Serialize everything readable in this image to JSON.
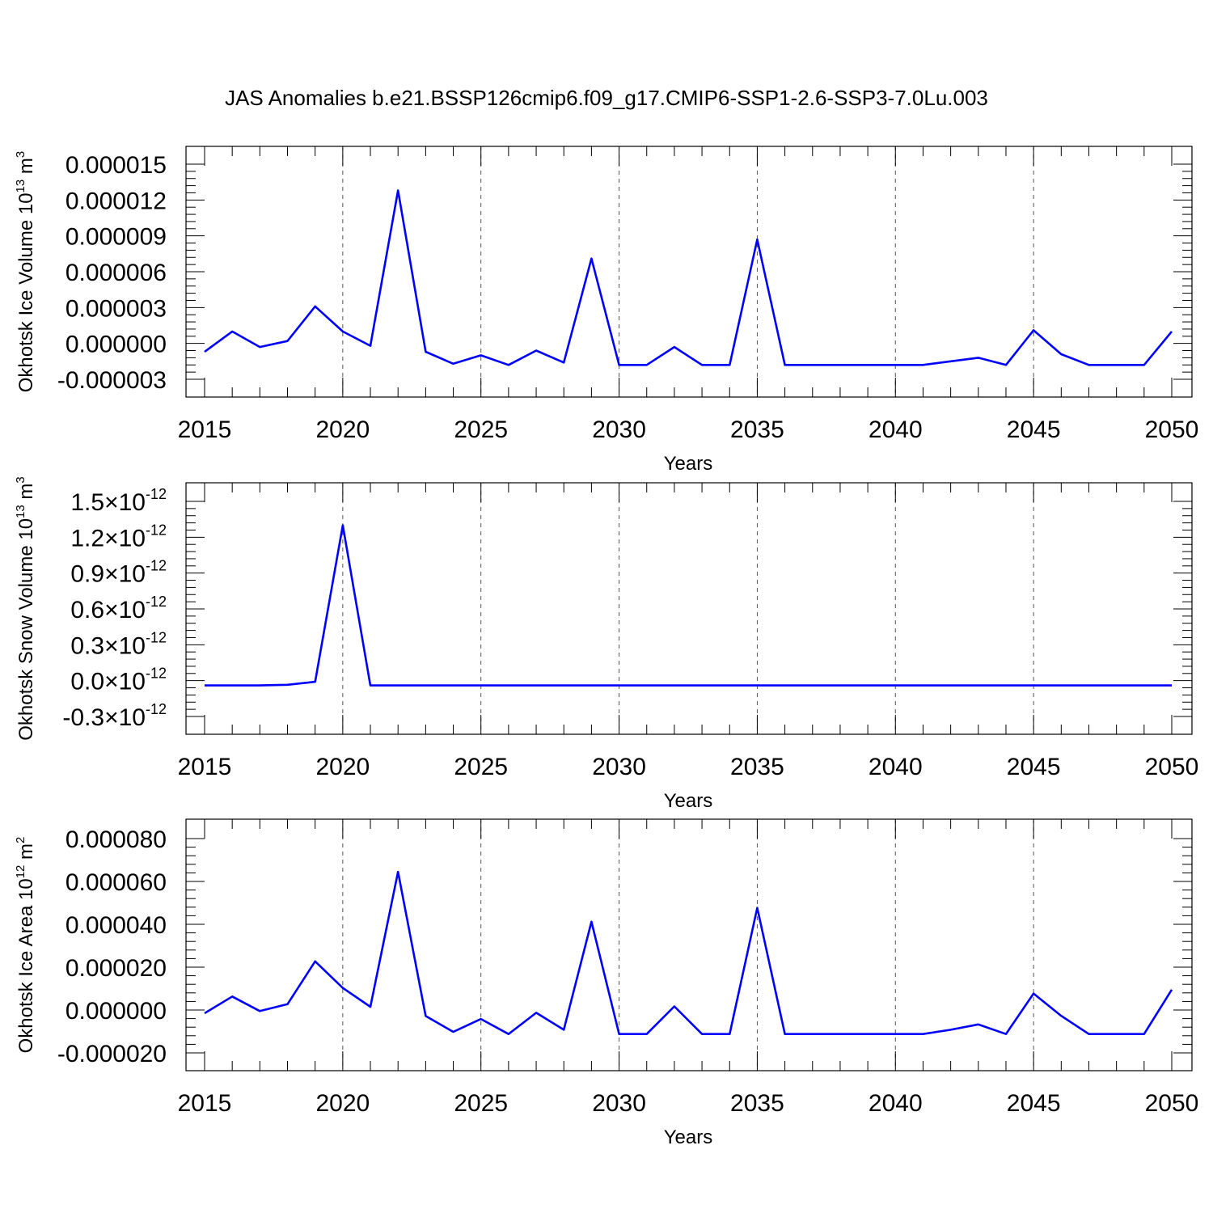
{
  "title": "JAS Anomalies b.e21.BSSP126cmip6.f09_g17.CMIP6-SSP1-2.6-SSP3-7.0Lu.003",
  "colors": {
    "line": "#0000ff",
    "axis": "#000000",
    "grid": "#555555"
  },
  "chart_data": [
    {
      "type": "line",
      "ylabel": {
        "main": "Okhotsk Ice Volume 10",
        "exp": "13",
        "unit": " m",
        "unit_exp": "3"
      },
      "xlabel": "Years",
      "xlim": [
        2015,
        2050
      ],
      "ylim": [
        -3e-06,
        1.5e-05
      ],
      "x_ticks": [
        2015,
        2020,
        2025,
        2030,
        2035,
        2040,
        2045,
        2050
      ],
      "x_tick_labels": [
        "2015",
        "2020",
        "2025",
        "2030",
        "2035",
        "2040",
        "2045",
        "2050"
      ],
      "y_ticks": [
        -3e-06,
        0,
        3e-06,
        6e-06,
        9e-06,
        1.2e-05,
        1.5e-05
      ],
      "y_tick_labels": [
        "-0.000003",
        "0.000000",
        "0.000003",
        "0.000006",
        "0.000009",
        "0.000012",
        "0.000015"
      ],
      "grid": "vertical dashed at major x ticks",
      "x": [
        2015,
        2016,
        2017,
        2018,
        2019,
        2020,
        2021,
        2022,
        2023,
        2024,
        2025,
        2026,
        2027,
        2028,
        2029,
        2030,
        2031,
        2032,
        2033,
        2034,
        2035,
        2036,
        2037,
        2038,
        2039,
        2040,
        2041,
        2042,
        2043,
        2044,
        2045,
        2046,
        2047,
        2048,
        2049,
        2050
      ],
      "values": [
        -7e-07,
        1e-06,
        -3e-07,
        2e-07,
        3.1e-06,
        1e-06,
        -2e-07,
        1.28e-05,
        -7e-07,
        -1.7e-06,
        -1e-06,
        -1.8e-06,
        -6e-07,
        -1.6e-06,
        7.1e-06,
        -1.8e-06,
        -1.8e-06,
        -3e-07,
        -1.8e-06,
        -1.8e-06,
        8.7e-06,
        -1.8e-06,
        -1.8e-06,
        -1.8e-06,
        -1.8e-06,
        -1.8e-06,
        -1.8e-06,
        -1.5e-06,
        -1.2e-06,
        -1.8e-06,
        1.1e-06,
        -9e-07,
        -1.8e-06,
        -1.8e-06,
        -1.8e-06,
        1e-06
      ]
    },
    {
      "type": "line",
      "ylabel": {
        "main": "Okhotsk Snow Volume 10",
        "exp": "13",
        "unit": " m",
        "unit_exp": "3"
      },
      "xlabel": "Years",
      "xlim": [
        2015,
        2050
      ],
      "ylim": [
        -3e-13,
        1.5e-12
      ],
      "x_ticks": [
        2015,
        2020,
        2025,
        2030,
        2035,
        2040,
        2045,
        2050
      ],
      "x_tick_labels": [
        "2015",
        "2020",
        "2025",
        "2030",
        "2035",
        "2040",
        "2045",
        "2050"
      ],
      "y_ticks": [
        -3e-13,
        0,
        3e-13,
        6e-13,
        9e-13,
        1.2e-12,
        1.5e-12
      ],
      "y_tick_labels": [
        {
          "mantissa": "-0.3",
          "times": "×10",
          "exp": "-12"
        },
        {
          "mantissa": "0.0",
          "times": "×10",
          "exp": "-12"
        },
        {
          "mantissa": "0.3",
          "times": "×10",
          "exp": "-12"
        },
        {
          "mantissa": "0.6",
          "times": "×10",
          "exp": "-12"
        },
        {
          "mantissa": "0.9",
          "times": "×10",
          "exp": "-12"
        },
        {
          "mantissa": "1.2",
          "times": "×10",
          "exp": "-12"
        },
        {
          "mantissa": "1.5",
          "times": "×10",
          "exp": "-12"
        }
      ],
      "grid": "vertical dashed at major x ticks",
      "x": [
        2015,
        2016,
        2017,
        2018,
        2019,
        2020,
        2021,
        2022,
        2023,
        2024,
        2025,
        2026,
        2027,
        2028,
        2029,
        2030,
        2031,
        2032,
        2033,
        2034,
        2035,
        2036,
        2037,
        2038,
        2039,
        2040,
        2041,
        2042,
        2043,
        2044,
        2045,
        2046,
        2047,
        2048,
        2049,
        2050
      ],
      "values": [
        -4e-14,
        -4e-14,
        -4e-14,
        -3.5e-14,
        -1e-14,
        1.3e-12,
        -4e-14,
        -4e-14,
        -4e-14,
        -4e-14,
        -4e-14,
        -4e-14,
        -4e-14,
        -4e-14,
        -4e-14,
        -4e-14,
        -4e-14,
        -4e-14,
        -4e-14,
        -4e-14,
        -4e-14,
        -4e-14,
        -4e-14,
        -4e-14,
        -4e-14,
        -4e-14,
        -4e-14,
        -4e-14,
        -4e-14,
        -4e-14,
        -4e-14,
        -4e-14,
        -4e-14,
        -4e-14,
        -4e-14,
        -4e-14
      ]
    },
    {
      "type": "line",
      "ylabel": {
        "main": "Okhotsk Ice Area 10",
        "exp": "12",
        "unit": " m",
        "unit_exp": "2"
      },
      "xlabel": "Years",
      "xlim": [
        2015,
        2050
      ],
      "ylim": [
        -2e-05,
        8e-05
      ],
      "x_ticks": [
        2015,
        2020,
        2025,
        2030,
        2035,
        2040,
        2045,
        2050
      ],
      "x_tick_labels": [
        "2015",
        "2020",
        "2025",
        "2030",
        "2035",
        "2040",
        "2045",
        "2050"
      ],
      "y_ticks": [
        -2e-05,
        0,
        2e-05,
        4e-05,
        6e-05,
        8e-05
      ],
      "y_tick_labels": [
        "-0.000020",
        "0.000000",
        "0.000020",
        "0.000040",
        "0.000060",
        "0.000080"
      ],
      "grid": "vertical dashed at major x ticks",
      "x": [
        2015,
        2016,
        2017,
        2018,
        2019,
        2020,
        2021,
        2022,
        2023,
        2024,
        2025,
        2026,
        2027,
        2028,
        2029,
        2030,
        2031,
        2032,
        2033,
        2034,
        2035,
        2036,
        2037,
        2038,
        2039,
        2040,
        2041,
        2042,
        2043,
        2044,
        2045,
        2046,
        2047,
        2048,
        2049,
        2050
      ],
      "values": [
        -1.5e-06,
        6.3e-06,
        -5e-07,
        2.7e-06,
        2.27e-05,
        1.03e-05,
        1.5e-06,
        6.45e-05,
        -2.8e-06,
        -1.02e-05,
        -4.2e-06,
        -1.12e-05,
        -1.3e-06,
        -9.2e-06,
        4.12e-05,
        -1.12e-05,
        -1.12e-05,
        1.7e-06,
        -1.12e-05,
        -1.12e-05,
        4.77e-05,
        -1.12e-05,
        -1.12e-05,
        -1.12e-05,
        -1.12e-05,
        -1.12e-05,
        -1.12e-05,
        -9.2e-06,
        -6.7e-06,
        -1.12e-05,
        7.7e-06,
        -2.7e-06,
        -1.12e-05,
        -1.12e-05,
        -1.12e-05,
        9.5e-06
      ]
    }
  ]
}
